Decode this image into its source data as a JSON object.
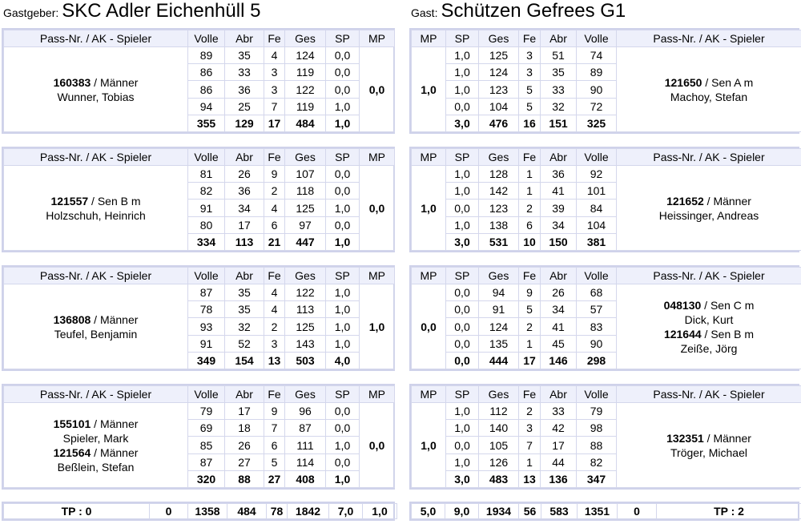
{
  "home": {
    "label": "Gastgeber:",
    "team": "SKC Adler Eichenhüll 5"
  },
  "guest": {
    "label": "Gast:",
    "team": "Schützen Gefrees G1"
  },
  "headers_home": [
    "Pass-Nr. / AK - Spieler",
    "Volle",
    "Abr",
    "Fe",
    "Ges",
    "SP",
    "MP"
  ],
  "headers_guest": [
    "MP",
    "SP",
    "Ges",
    "Fe",
    "Abr",
    "Volle",
    "Pass-Nr. / AK - Spieler"
  ],
  "matches": [
    {
      "home": {
        "players": [
          {
            "pass": "160383",
            "ak": " / Männer",
            "name": "Wunner, Tobias"
          }
        ],
        "mp": "0,0",
        "rows": [
          [
            "89",
            "35",
            "4",
            "124",
            "0,0"
          ],
          [
            "86",
            "33",
            "3",
            "119",
            "0,0"
          ],
          [
            "86",
            "36",
            "3",
            "122",
            "0,0"
          ],
          [
            "94",
            "25",
            "7",
            "119",
            "1,0"
          ]
        ],
        "total": [
          "355",
          "129",
          "17",
          "484",
          "1,0"
        ]
      },
      "guest": {
        "players": [
          {
            "pass": "121650",
            "ak": " / Sen A m",
            "name": "Machoy, Stefan"
          }
        ],
        "mp": "1,0",
        "rows": [
          [
            "1,0",
            "125",
            "3",
            "51",
            "74"
          ],
          [
            "1,0",
            "124",
            "3",
            "35",
            "89"
          ],
          [
            "1,0",
            "123",
            "5",
            "33",
            "90"
          ],
          [
            "0,0",
            "104",
            "5",
            "32",
            "72"
          ]
        ],
        "total": [
          "3,0",
          "476",
          "16",
          "151",
          "325"
        ]
      }
    },
    {
      "home": {
        "players": [
          {
            "pass": "121557",
            "ak": " / Sen B m",
            "name": "Holzschuh, Heinrich"
          }
        ],
        "mp": "0,0",
        "rows": [
          [
            "81",
            "26",
            "9",
            "107",
            "0,0"
          ],
          [
            "82",
            "36",
            "2",
            "118",
            "0,0"
          ],
          [
            "91",
            "34",
            "4",
            "125",
            "1,0"
          ],
          [
            "80",
            "17",
            "6",
            "97",
            "0,0"
          ]
        ],
        "total": [
          "334",
          "113",
          "21",
          "447",
          "1,0"
        ]
      },
      "guest": {
        "players": [
          {
            "pass": "121652",
            "ak": " / Männer",
            "name": "Heissinger, Andreas"
          }
        ],
        "mp": "1,0",
        "rows": [
          [
            "1,0",
            "128",
            "1",
            "36",
            "92"
          ],
          [
            "1,0",
            "142",
            "1",
            "41",
            "101"
          ],
          [
            "0,0",
            "123",
            "2",
            "39",
            "84"
          ],
          [
            "1,0",
            "138",
            "6",
            "34",
            "104"
          ]
        ],
        "total": [
          "3,0",
          "531",
          "10",
          "150",
          "381"
        ]
      }
    },
    {
      "home": {
        "players": [
          {
            "pass": "136808",
            "ak": " / Männer",
            "name": "Teufel, Benjamin"
          }
        ],
        "mp": "1,0",
        "rows": [
          [
            "87",
            "35",
            "4",
            "122",
            "1,0"
          ],
          [
            "78",
            "35",
            "4",
            "113",
            "1,0"
          ],
          [
            "93",
            "32",
            "2",
            "125",
            "1,0"
          ],
          [
            "91",
            "52",
            "3",
            "143",
            "1,0"
          ]
        ],
        "total": [
          "349",
          "154",
          "13",
          "503",
          "4,0"
        ]
      },
      "guest": {
        "players": [
          {
            "pass": "048130",
            "ak": " / Sen C m",
            "name": "Dick, Kurt"
          },
          {
            "pass": "121644",
            "ak": " / Sen B m",
            "name": "Zeiße, Jörg"
          }
        ],
        "mp": "0,0",
        "rows": [
          [
            "0,0",
            "94",
            "9",
            "26",
            "68"
          ],
          [
            "0,0",
            "91",
            "5",
            "34",
            "57"
          ],
          [
            "0,0",
            "124",
            "2",
            "41",
            "83"
          ],
          [
            "0,0",
            "135",
            "1",
            "45",
            "90"
          ]
        ],
        "total": [
          "0,0",
          "444",
          "17",
          "146",
          "298"
        ]
      }
    },
    {
      "home": {
        "players": [
          {
            "pass": "155101",
            "ak": " / Männer",
            "name": "Spieler, Mark"
          },
          {
            "pass": "121564",
            "ak": " / Männer",
            "name": "Beßlein, Stefan"
          }
        ],
        "mp": "0,0",
        "rows": [
          [
            "79",
            "17",
            "9",
            "96",
            "0,0"
          ],
          [
            "69",
            "18",
            "7",
            "87",
            "0,0"
          ],
          [
            "85",
            "26",
            "6",
            "111",
            "1,0"
          ],
          [
            "87",
            "27",
            "5",
            "114",
            "0,0"
          ]
        ],
        "total": [
          "320",
          "88",
          "27",
          "408",
          "1,0"
        ]
      },
      "guest": {
        "players": [
          {
            "pass": "132351",
            "ak": " / Männer",
            "name": "Tröger, Michael"
          }
        ],
        "mp": "1,0",
        "rows": [
          [
            "1,0",
            "112",
            "2",
            "33",
            "79"
          ],
          [
            "1,0",
            "140",
            "3",
            "42",
            "98"
          ],
          [
            "0,0",
            "105",
            "7",
            "17",
            "88"
          ],
          [
            "1,0",
            "126",
            "1",
            "44",
            "82"
          ]
        ],
        "total": [
          "3,0",
          "483",
          "13",
          "136",
          "347"
        ]
      }
    }
  ],
  "footer_home": {
    "tp": "TP : 0",
    "sp": "0",
    "volle": "1358",
    "abr": "484",
    "fe": "78",
    "ges": "1842",
    "sp2": "7,0",
    "mp": "1,0"
  },
  "footer_guest": {
    "mp": "5,0",
    "sp": "9,0",
    "ges": "1934",
    "fe": "56",
    "abr": "583",
    "volle": "1351",
    "sp2": "0",
    "tp": "TP : 2"
  }
}
